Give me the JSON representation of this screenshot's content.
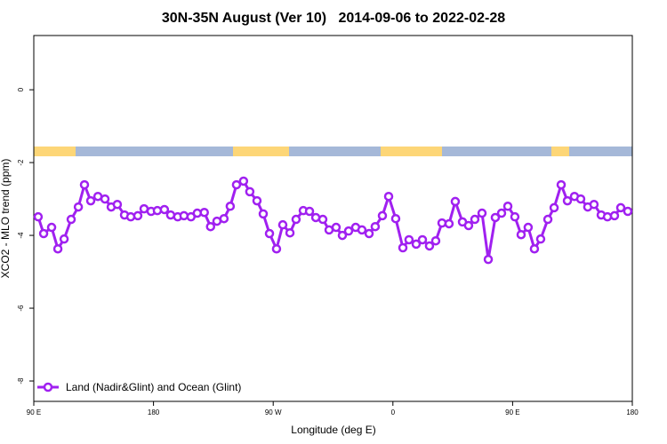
{
  "chart_data": {
    "type": "line",
    "title": "30N-35N August (Ver 10)   2014-09-06 to 2022-02-28",
    "x_label": "Longitude (deg E)",
    "y_label": "XCO2 - MLO trend (ppm)",
    "xlim": [
      90,
      540
    ],
    "ylim": [
      -8.56,
      1.49
    ],
    "xticks": [
      {
        "value": 90,
        "label": "90 E"
      },
      180,
      {
        "value": 270,
        "label": "90 W"
      },
      {
        "value": 360,
        "label": "0"
      },
      {
        "value": 450,
        "label": "90 E"
      },
      {
        "value": 540,
        "label": "180"
      }
    ],
    "yticks": [
      0,
      -2,
      -4,
      -6,
      -8
    ],
    "legend": "bottom-left",
    "series": [
      {
        "name": "Land (Nadir&Glint) and Ocean (Glint)",
        "color": "#a020f0",
        "x": [
          93.3,
          97.4,
          103.4,
          108.1,
          112.8,
          118.1,
          123.5,
          128.1,
          132.8,
          138.2,
          143.5,
          148.2,
          152.8,
          158.2,
          162.9,
          168.2,
          172.9,
          178.2,
          182.9,
          188.2,
          192.9,
          198.2,
          202.9,
          208.2,
          212.9,
          218.2,
          222.9,
          227.7,
          233.0,
          237.7,
          242.4,
          247.7,
          252.4,
          257.8,
          262.5,
          267.2,
          272.5,
          277.2,
          282.6,
          287.2,
          292.6,
          297.3,
          302.0,
          307.3,
          312.0,
          317.3,
          322.0,
          326.7,
          332.0,
          336.7,
          342.1,
          346.7,
          352.1,
          356.8,
          362.1,
          367.5,
          372.1,
          377.5,
          382.2,
          387.5,
          392.2,
          396.9,
          402.2,
          406.9,
          412.3,
          416.9,
          421.6,
          427.0,
          431.7,
          437.0,
          441.7,
          446.4,
          451.7,
          456.4,
          461.7,
          466.4,
          471.1,
          476.5,
          481.2,
          486.5,
          491.2,
          496.5,
          501.2,
          506.5,
          511.2,
          516.6,
          521.3,
          526.6,
          531.3,
          536.6
        ],
        "values": [
          -3.49,
          -3.95,
          -3.78,
          -4.37,
          -4.1,
          -3.56,
          -3.22,
          -2.61,
          -3.05,
          -2.93,
          -3.0,
          -3.22,
          -3.15,
          -3.44,
          -3.49,
          -3.46,
          -3.27,
          -3.34,
          -3.32,
          -3.29,
          -3.44,
          -3.49,
          -3.46,
          -3.49,
          -3.39,
          -3.37,
          -3.76,
          -3.61,
          -3.54,
          -3.2,
          -2.61,
          -2.51,
          -2.8,
          -3.05,
          -3.41,
          -3.95,
          -4.37,
          -3.71,
          -3.93,
          -3.56,
          -3.32,
          -3.34,
          -3.51,
          -3.56,
          -3.85,
          -3.78,
          -4.0,
          -3.88,
          -3.78,
          -3.85,
          -3.95,
          -3.76,
          -3.46,
          -2.93,
          -3.54,
          -4.34,
          -4.12,
          -4.24,
          -4.12,
          -4.29,
          -4.15,
          -3.66,
          -3.68,
          -3.07,
          -3.63,
          -3.73,
          -3.56,
          -3.39,
          -4.66,
          -3.51,
          -3.39,
          -3.2,
          -3.49,
          -3.98,
          -3.78,
          -4.37,
          -4.1,
          -3.56,
          -3.24,
          -2.61,
          -3.05,
          -2.93,
          -3.0,
          -3.22,
          -3.15,
          -3.44,
          -3.49,
          -3.46,
          -3.24,
          -3.34
        ]
      }
    ]
  }
}
